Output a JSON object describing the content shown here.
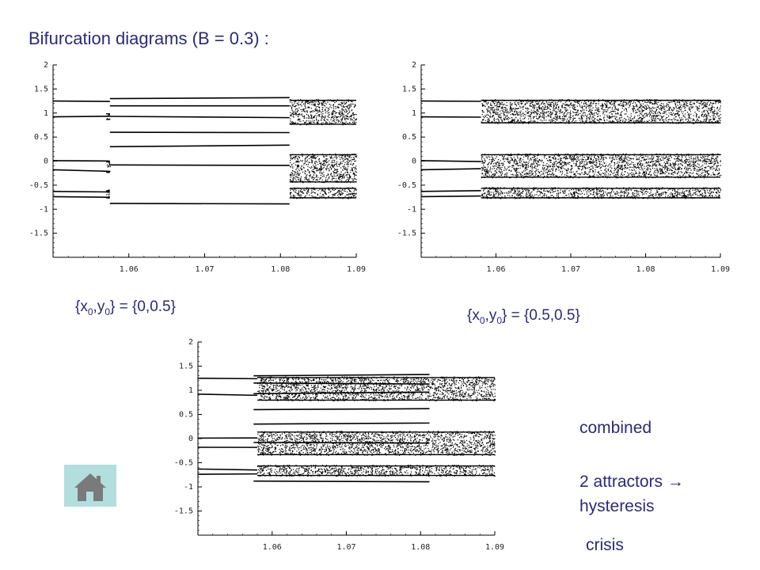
{
  "header": {
    "title": "Bifurcation diagrams (B = 0.3) :"
  },
  "labels": {
    "left_ic": {
      "prefix": "{x",
      "mid": ",y",
      "suffix": "} = {0,0.5}",
      "sub": "0"
    },
    "right_ic": {
      "prefix": "{x",
      "mid": ",y",
      "suffix": "} = {0.5,0.5}",
      "sub": "0"
    }
  },
  "notes": {
    "combined": "combined",
    "attractors": "2 attractors →",
    "hysteresis": "hysteresis",
    "crisis": "crisis"
  },
  "icons": {
    "home": "home-icon"
  },
  "colors": {
    "text": "#2a2a7a",
    "home_bg": "#b3dede",
    "home_fg": "#7a7a7a"
  },
  "chart_data": [
    {
      "type": "scatter",
      "title": "",
      "xlim": [
        1.05,
        1.09
      ],
      "ylim": [
        -2,
        2
      ],
      "x_ticks": [
        "1.06",
        "1.07",
        "1.08",
        "1.09"
      ],
      "y_ticks": [
        "2",
        "1.5",
        "1",
        "0.5",
        "0",
        "-0.5",
        "-1",
        "-1.5"
      ],
      "regions": [
        {
          "name": "period",
          "x": [
            1.05,
            1.0575
          ],
          "branches": [
            1.25,
            0.92,
            0.01,
            -0.18,
            -0.63,
            -0.74
          ]
        },
        {
          "name": "chaos",
          "x": [
            1.057,
            1.0575
          ],
          "bands": [
            [
              0.85,
              1.0
            ],
            [
              -0.25,
              0.0
            ],
            [
              -0.78,
              -0.6
            ]
          ]
        },
        {
          "name": "period",
          "x": [
            1.0575,
            1.0812
          ],
          "branches": [
            1.3,
            1.15,
            0.93,
            0.6,
            0.3,
            -0.08,
            -0.88
          ]
        },
        {
          "name": "chaos",
          "x": [
            1.0812,
            1.09
          ],
          "bands": [
            [
              0.75,
              1.28
            ],
            [
              -0.45,
              0.15
            ],
            [
              -0.78,
              -0.55
            ]
          ]
        }
      ]
    },
    {
      "type": "scatter",
      "title": "",
      "xlim": [
        1.05,
        1.09
      ],
      "ylim": [
        -2,
        2
      ],
      "x_ticks": [
        "1.06",
        "1.07",
        "1.08",
        "1.09"
      ],
      "y_ticks": [
        "2",
        "1.5",
        "1",
        "0.5",
        "0",
        "-0.5",
        "-1",
        "-1.5"
      ],
      "regions": [
        {
          "name": "period",
          "x": [
            1.05,
            1.058
          ],
          "branches": [
            1.25,
            0.92,
            0.01,
            -0.18,
            -0.63,
            -0.74
          ]
        },
        {
          "name": "chaos",
          "x": [
            1.058,
            1.09
          ],
          "bands": [
            [
              0.78,
              1.28
            ],
            [
              -0.35,
              0.15
            ],
            [
              -0.78,
              -0.55
            ]
          ]
        }
      ]
    },
    {
      "type": "scatter",
      "title": "",
      "xlim": [
        1.05,
        1.09
      ],
      "ylim": [
        -2,
        2
      ],
      "x_ticks": [
        "1.06",
        "1.07",
        "1.08",
        "1.09"
      ],
      "y_ticks": [
        "2",
        "1.5",
        "1",
        "0.5",
        "0",
        "-0.5",
        "-1",
        "-1.5"
      ],
      "regions": [
        {
          "name": "period",
          "x": [
            1.05,
            1.058
          ],
          "branches": [
            1.25,
            0.92,
            0.01,
            -0.18,
            -0.63,
            -0.74
          ]
        },
        {
          "name": "period",
          "x": [
            1.0575,
            1.0812
          ],
          "branches": [
            1.3,
            1.15,
            0.93,
            0.6,
            0.3,
            -0.08,
            -0.88
          ]
        },
        {
          "name": "chaos",
          "x": [
            1.058,
            1.09
          ],
          "bands": [
            [
              0.78,
              1.28
            ],
            [
              -0.35,
              0.15
            ],
            [
              -0.78,
              -0.55
            ]
          ]
        }
      ]
    }
  ]
}
